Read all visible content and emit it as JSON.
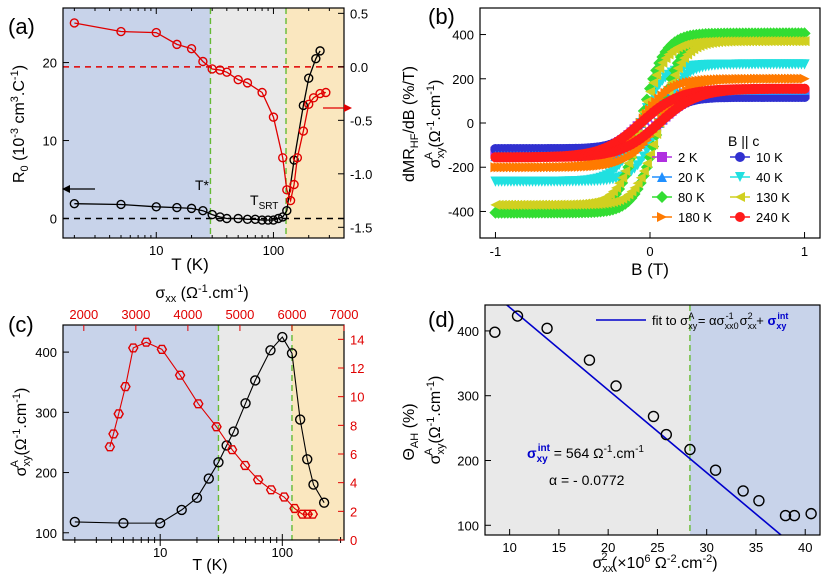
{
  "colors": {
    "black": "#000000",
    "red": "#e00000",
    "blue": "#0000cc",
    "green": "#66bb33",
    "shade_blue": "#c8d3ea",
    "shade_gray": "#e9e9e9",
    "shade_orange": "#fae7bf"
  },
  "chart_data": [
    {
      "panel": "(a)",
      "type": "line",
      "xscale": "log",
      "xlim": [
        1.6,
        400
      ],
      "xticks": [
        10,
        100
      ],
      "xtick_labels": [
        "10",
        "100"
      ],
      "xlabel": "T (K)",
      "ylabel": "R0 (10-3 cm3.C-1)",
      "ylim_left": [
        -2.5,
        27
      ],
      "yticks_left": [
        0,
        10,
        20
      ],
      "ylabel_right": "dMRHF/dB (%/T)",
      "ylim_right": [
        -1.6,
        0.55
      ],
      "yticks_right": [
        -1.5,
        -1.0,
        -0.5,
        0.0,
        0.5
      ],
      "ytick_labels_right": [
        "-1.5",
        "-1.0",
        "-0.5",
        "0.0",
        "0.5"
      ],
      "markers": {
        "tstar": 29,
        "tsrt": 128
      },
      "annotations": {
        "tstar": "T*",
        "tsrt": "TSRT"
      },
      "series": [
        {
          "name": "R0",
          "axis": "left",
          "color": "#000000",
          "x": [
            2,
            5,
            10,
            15,
            20,
            25,
            30,
            35,
            40,
            50,
            60,
            70,
            80,
            90,
            100,
            110,
            120,
            130,
            150,
            180,
            200,
            230,
            250
          ],
          "y": [
            1.9,
            1.8,
            1.5,
            1.4,
            1.3,
            1.0,
            0.5,
            0.2,
            0.0,
            0.0,
            -0.1,
            -0.1,
            -0.2,
            -0.2,
            -0.2,
            0.0,
            0.2,
            1.0,
            7.5,
            14.5,
            18.0,
            20.5,
            21.5
          ]
        },
        {
          "name": "dMR/dB",
          "axis": "right",
          "color": "#e00000",
          "x": [
            2,
            5,
            10,
            15,
            20,
            25,
            30,
            35,
            40,
            50,
            60,
            80,
            100,
            120,
            130,
            140,
            150,
            160,
            180,
            200,
            220,
            250,
            280
          ],
          "y": [
            0.41,
            0.33,
            0.32,
            0.21,
            0.17,
            0.05,
            -0.02,
            -0.03,
            -0.05,
            -0.12,
            -0.15,
            -0.24,
            -0.47,
            -0.85,
            -1.15,
            -1.25,
            -1.1,
            -0.85,
            -0.6,
            -0.35,
            -0.29,
            -0.25,
            -0.24
          ]
        }
      ]
    },
    {
      "panel": "(b)",
      "type": "line",
      "xlabel": "B (T)",
      "ylabel": "σAxy (Ω-1.cm-1)",
      "xlim": [
        -1.1,
        1.1
      ],
      "ylim": [
        -520,
        520
      ],
      "xticks": [
        -1,
        0,
        1
      ],
      "xtick_labels": [
        "-1",
        "0",
        "1"
      ],
      "yticks": [
        -400,
        -200,
        0,
        200,
        400
      ],
      "ytick_labels": [
        "-400",
        "-200",
        "0",
        "200",
        "400"
      ],
      "legend_title": "B || c",
      "series": [
        {
          "name": "2 K",
          "color": "#b030e0",
          "marker": "square",
          "sat": 130,
          "bs": 0.32
        },
        {
          "name": "10 K",
          "color": "#3030d0",
          "marker": "circle",
          "sat": 118,
          "bs": 0.3
        },
        {
          "name": "20 K",
          "color": "#2090ff",
          "marker": "triangle-up",
          "sat": 150,
          "bs": 0.3
        },
        {
          "name": "40 K",
          "color": "#20e0e0",
          "marker": "triangle-down",
          "sat": 265,
          "bs": 0.28
        },
        {
          "name": "80 K",
          "color": "#33dd33",
          "marker": "diamond",
          "sat": 405,
          "bs": 0.27
        },
        {
          "name": "130 K",
          "color": "#d0d020",
          "marker": "triangle-left",
          "sat": 370,
          "bs": 0.27
        },
        {
          "name": "180 K",
          "color": "#ff7a00",
          "marker": "triangle-right",
          "sat": 200,
          "bs": 0.35
        },
        {
          "name": "240 K",
          "color": "#ff1a1a",
          "marker": "circle",
          "sat": 155,
          "bs": 0.45
        }
      ]
    },
    {
      "panel": "(c)",
      "type": "scatter",
      "xscale": "log",
      "xlim": [
        1.6,
        320
      ],
      "xticks": [
        10,
        100
      ],
      "xtick_labels": [
        "10",
        "100"
      ],
      "xlabel": "T (K)",
      "ylabel": "σAxy (Ω-1.cm-1)",
      "ylim": [
        88,
        445
      ],
      "yticks": [
        100,
        200,
        300,
        400
      ],
      "ytick_labels": [
        "100",
        "200",
        "300",
        "400"
      ],
      "top_xlabel": "σxx (Ω-1.cm-1)",
      "top_xlim": [
        1600,
        7000
      ],
      "top_xticks": [
        2000,
        3000,
        4000,
        5000,
        6000,
        7000
      ],
      "top_xtick_labels": [
        "2000",
        "3000",
        "4000",
        "5000",
        "6000",
        "7000"
      ],
      "right_ylabel": "ΘAH (%)",
      "right_ylim": [
        0,
        15
      ],
      "right_yticks": [
        0,
        2,
        4,
        6,
        8,
        10,
        12,
        14
      ],
      "right_ytick_labels": [
        "0",
        "2",
        "4",
        "6",
        "8",
        "10",
        "12",
        "14"
      ],
      "markers": {
        "tstar": 30,
        "tsrt": 120
      },
      "series": [
        {
          "name": "σAxy vs T",
          "color": "#000000",
          "x": [
            2,
            5,
            10,
            15,
            20,
            25,
            30,
            35,
            40,
            50,
            60,
            80,
            100,
            120,
            140,
            160,
            180,
            220
          ],
          "y": [
            118,
            116,
            116,
            138,
            158,
            190,
            217,
            245,
            268,
            315,
            353,
            403,
            425,
            398,
            288,
            222,
            180,
            150
          ]
        },
        {
          "name": "ΘAH vs σxx",
          "color": "#e00000",
          "x": [
            2500,
            2570,
            2670,
            2800,
            2950,
            3200,
            3500,
            3850,
            4200,
            4550,
            4850,
            5100,
            5350,
            5600,
            5850,
            6050,
            6200,
            6300,
            6400
          ],
          "y": [
            6.5,
            7.4,
            8.8,
            10.7,
            13.4,
            13.8,
            13.3,
            11.5,
            9.5,
            7.9,
            6.3,
            5.2,
            4.2,
            3.5,
            3.0,
            2.2,
            1.8,
            1.8,
            1.8
          ]
        }
      ]
    },
    {
      "panel": "(d)",
      "type": "scatter",
      "xlabel": "σ2xx (×106 Ω-2.cm-2)",
      "ylabel": "σAxy (Ω-1.cm-1)",
      "xlim": [
        7.5,
        41.5
      ],
      "ylim": [
        85,
        440
      ],
      "xticks": [
        10,
        15,
        20,
        25,
        30,
        35,
        40
      ],
      "xtick_labels": [
        "10",
        "15",
        "20",
        "25",
        "30",
        "35",
        "40"
      ],
      "yticks": [
        100,
        200,
        300,
        400
      ],
      "ytick_labels": [
        "100",
        "200",
        "300",
        "400"
      ],
      "vline_x": 28.3,
      "fit": {
        "intercept": 564,
        "slope": -12.76,
        "x_range": [
          8.6,
          40.2
        ]
      },
      "legend": {
        "prefix": "fit to σAxy = ασxx0-1σ2xx + ",
        "bold": "σintxy"
      },
      "annotations": {
        "sigma_int_label": "σintxy",
        "sigma_int_value": " = 564 Ω-1.cm-1",
        "alpha": "α = - 0.0772"
      },
      "points": {
        "x": [
          8.5,
          10.8,
          13.8,
          18.1,
          20.8,
          24.6,
          25.9,
          28.3,
          30.9,
          33.7,
          35.3,
          38.0,
          38.9,
          40.6
        ],
        "y": [
          398,
          423,
          404,
          355,
          315,
          268,
          240,
          217,
          185,
          153,
          138,
          115,
          115,
          118
        ]
      }
    }
  ],
  "labels": {
    "panel_a": "(a)",
    "panel_b": "(b)",
    "panel_c": "(c)",
    "panel_d": "(d)",
    "a_xlabel": "T (K)",
    "b_xlabel": "B (T)",
    "c_xlabel": "T (K)",
    "d_xlabel": "σ2xx (×106 Ω-2.cm-2)",
    "a_tstar": "T*",
    "a_tsrt": "TSRT",
    "legend_title": "B || c"
  }
}
